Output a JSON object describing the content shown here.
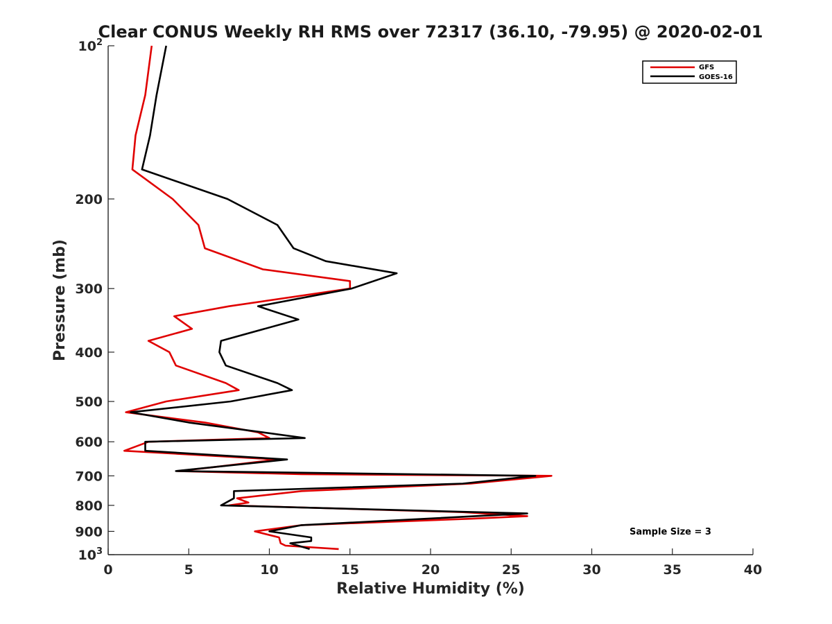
{
  "chart_data": {
    "type": "line",
    "title": "Clear CONUS Weekly RH RMS over 72317 (36.10, -79.95) @ 2020-02-01",
    "xlabel": "Relative Humidity (%)",
    "ylabel": "Pressure (mb)",
    "xlim": [
      0,
      40
    ],
    "ylim": [
      100,
      1000
    ],
    "y_scale": "log",
    "y_reversed": true,
    "grid": false,
    "legend_position": "top-right",
    "x_ticks": [
      "0",
      "5",
      "10",
      "15",
      "20",
      "25",
      "30",
      "35",
      "40"
    ],
    "y_ticks": [
      {
        "value": 100,
        "base": "10",
        "exp": "2"
      },
      {
        "value": 200,
        "label": "200"
      },
      {
        "value": 300,
        "label": "300"
      },
      {
        "value": 400,
        "label": "400"
      },
      {
        "value": 500,
        "label": "500"
      },
      {
        "value": 600,
        "label": "600"
      },
      {
        "value": 700,
        "label": "700"
      },
      {
        "value": 800,
        "label": "800"
      },
      {
        "value": 900,
        "label": "900"
      },
      {
        "value": 1000,
        "base": "10",
        "exp": "3"
      }
    ],
    "annotation": "Sample Size = 3",
    "series": [
      {
        "name": "GFS",
        "color": "#e00000",
        "points": [
          [
            2.7,
            100
          ],
          [
            2.3,
            125
          ],
          [
            1.7,
            150
          ],
          [
            1.5,
            175
          ],
          [
            4.0,
            200
          ],
          [
            5.6,
            225
          ],
          [
            6.0,
            250
          ],
          [
            9.6,
            275
          ],
          [
            15.0,
            290
          ],
          [
            15.0,
            300
          ],
          [
            7.5,
            325
          ],
          [
            4.1,
            340
          ],
          [
            5.2,
            360
          ],
          [
            2.5,
            380
          ],
          [
            3.8,
            400
          ],
          [
            4.2,
            425
          ],
          [
            7.3,
            460
          ],
          [
            8.1,
            475
          ],
          [
            3.6,
            500
          ],
          [
            1.1,
            525
          ],
          [
            6.0,
            550
          ],
          [
            9.3,
            575
          ],
          [
            10.0,
            590
          ],
          [
            2.5,
            600
          ],
          [
            1.0,
            625
          ],
          [
            10.5,
            650
          ],
          [
            6.2,
            675
          ],
          [
            4.3,
            685
          ],
          [
            12.0,
            695
          ],
          [
            27.5,
            700
          ],
          [
            22.5,
            725
          ],
          [
            12.0,
            750
          ],
          [
            8.0,
            775
          ],
          [
            8.7,
            790
          ],
          [
            7.5,
            800
          ],
          [
            22.0,
            825
          ],
          [
            26.0,
            840
          ],
          [
            22.5,
            850
          ],
          [
            12.0,
            875
          ],
          [
            9.1,
            900
          ],
          [
            10.6,
            925
          ],
          [
            10.7,
            950
          ],
          [
            11.0,
            960
          ],
          [
            14.3,
            975
          ]
        ]
      },
      {
        "name": "GOES-16",
        "color": "#000000",
        "points": [
          [
            3.6,
            100
          ],
          [
            3.0,
            125
          ],
          [
            2.6,
            150
          ],
          [
            2.1,
            175
          ],
          [
            7.4,
            200
          ],
          [
            10.5,
            225
          ],
          [
            11.5,
            250
          ],
          [
            13.5,
            265
          ],
          [
            17.9,
            280
          ],
          [
            15.1,
            300
          ],
          [
            9.3,
            325
          ],
          [
            11.8,
            345
          ],
          [
            7.0,
            380
          ],
          [
            6.9,
            400
          ],
          [
            7.3,
            425
          ],
          [
            10.5,
            460
          ],
          [
            11.4,
            475
          ],
          [
            7.6,
            500
          ],
          [
            1.4,
            525
          ],
          [
            5.0,
            550
          ],
          [
            9.6,
            575
          ],
          [
            12.2,
            590
          ],
          [
            2.3,
            600
          ],
          [
            2.3,
            625
          ],
          [
            11.1,
            650
          ],
          [
            4.2,
            685
          ],
          [
            26.5,
            700
          ],
          [
            22.0,
            725
          ],
          [
            7.8,
            750
          ],
          [
            7.8,
            775
          ],
          [
            7.0,
            800
          ],
          [
            26.0,
            830
          ],
          [
            12.0,
            875
          ],
          [
            10.0,
            900
          ],
          [
            12.6,
            925
          ],
          [
            12.6,
            940
          ],
          [
            11.3,
            950
          ],
          [
            12.5,
            975
          ]
        ]
      }
    ]
  }
}
